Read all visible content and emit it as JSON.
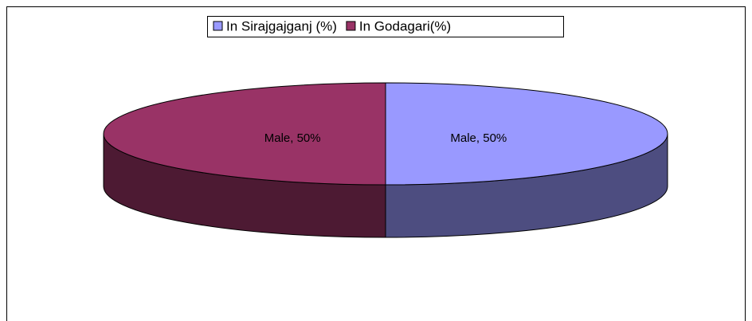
{
  "chart_data": {
    "type": "pie",
    "categories": [
      "Male"
    ],
    "series": [
      {
        "name": "In Sirajgajganj (%)",
        "color": "#9999ff",
        "values": [
          50
        ],
        "value_labels": [
          "Male, 50%"
        ]
      },
      {
        "name": "In Godagari(%)",
        "color": "#993366",
        "values": [
          50
        ],
        "value_labels": [
          "Male, 50%"
        ]
      }
    ],
    "legend": "top",
    "three_d": true
  }
}
